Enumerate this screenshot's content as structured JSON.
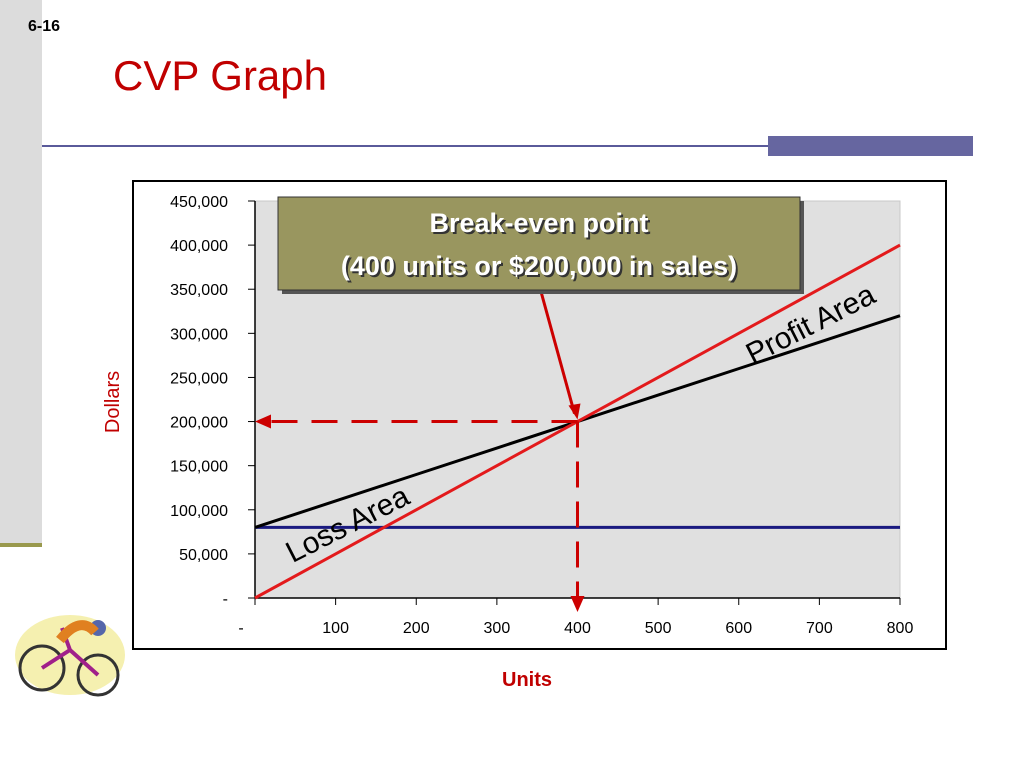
{
  "slide_number": "6-16",
  "chart_data": {
    "type": "line",
    "title": "CVP Graph",
    "x_label": "Units",
    "y_label": "Dollars",
    "x": [
      0,
      100,
      200,
      300,
      400,
      500,
      600,
      700,
      800
    ],
    "series": [
      {
        "color": "#1a1a80",
        "values": [
          80000,
          80000,
          80000,
          80000,
          80000,
          80000,
          80000,
          80000,
          80000
        ]
      },
      {
        "color": "#000000",
        "values": [
          80000,
          110000,
          140000,
          170000,
          200000,
          230000,
          260000,
          290000,
          320000
        ]
      },
      {
        "color": "#e31a1c",
        "values": [
          0,
          50000,
          100000,
          150000,
          200000,
          250000,
          300000,
          350000,
          400000
        ]
      }
    ],
    "xlim": [
      0,
      800
    ],
    "ylim": [
      0,
      450000
    ],
    "xticks": [
      {
        "value": 0,
        "label": "-"
      },
      100,
      200,
      300,
      400,
      500,
      600,
      700,
      800
    ],
    "yticks": [
      {
        "value": 0,
        "label": "-"
      },
      {
        "value": 50000,
        "label": "50,000"
      },
      {
        "value": 100000,
        "label": "100,000"
      },
      {
        "value": 150000,
        "label": "150,000"
      },
      {
        "value": 200000,
        "label": "200,000"
      },
      {
        "value": 250000,
        "label": "250,000"
      },
      {
        "value": 300000,
        "label": "300,000"
      },
      {
        "value": 350000,
        "label": "350,000"
      },
      {
        "value": 400000,
        "label": "400,000"
      },
      {
        "value": 450000,
        "label": "450,000"
      }
    ],
    "break_even": {
      "x": 400,
      "y": 200000
    },
    "annotations": {
      "break_even_line1": "Break-even point",
      "break_even_line2": "(400 units or $200,000 in sales)",
      "profit": "Profit Area",
      "loss": "Loss Area"
    }
  }
}
